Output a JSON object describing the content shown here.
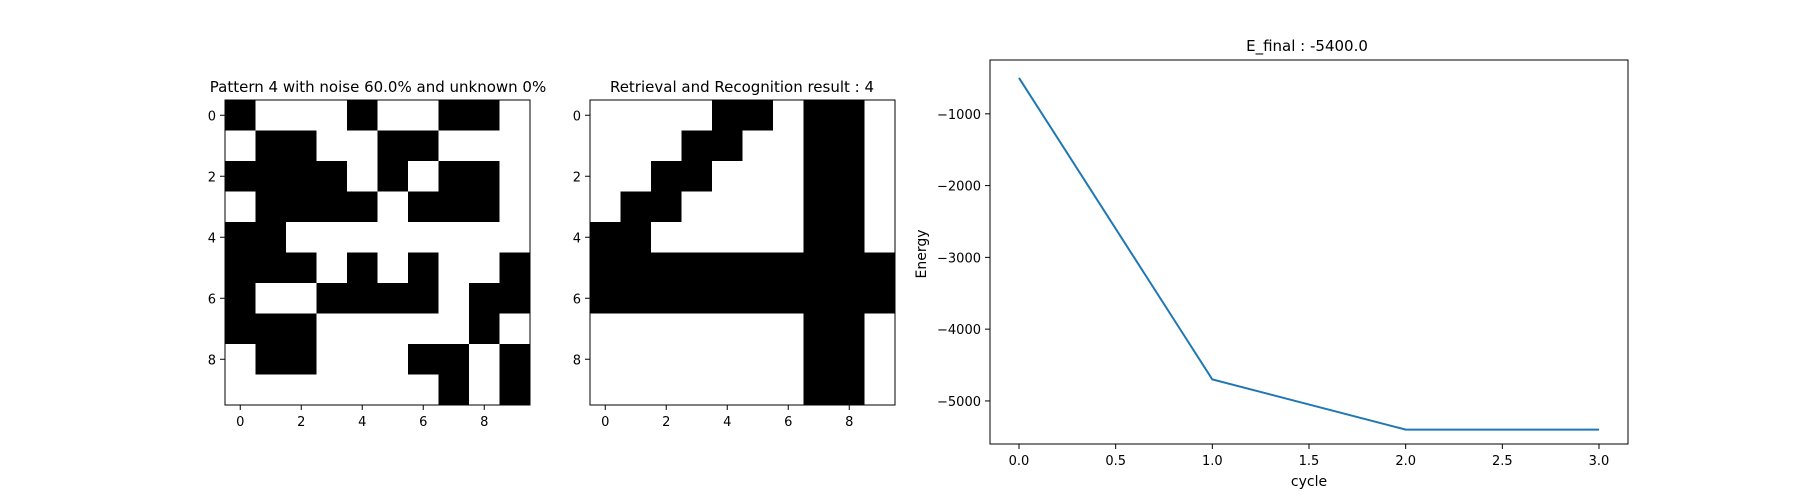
{
  "chart_data": [
    {
      "type": "heatmap",
      "title": "Pattern 4 with noise 60.0% and unknown 0%",
      "x_ticks": [
        "0",
        "2",
        "4",
        "6",
        "8"
      ],
      "y_ticks": [
        "0",
        "2",
        "4",
        "6",
        "8"
      ],
      "rows": 10,
      "cols": 10,
      "colormap": {
        "1": "#000000",
        "0": "#ffffff"
      },
      "grid": [
        [
          1,
          0,
          0,
          0,
          1,
          0,
          0,
          1,
          1,
          0
        ],
        [
          0,
          1,
          1,
          0,
          0,
          1,
          1,
          0,
          0,
          0
        ],
        [
          1,
          1,
          1,
          1,
          0,
          1,
          0,
          1,
          1,
          0
        ],
        [
          0,
          1,
          1,
          1,
          1,
          0,
          1,
          1,
          1,
          0
        ],
        [
          1,
          1,
          0,
          0,
          0,
          0,
          0,
          0,
          0,
          0
        ],
        [
          1,
          1,
          1,
          0,
          1,
          0,
          1,
          0,
          0,
          1
        ],
        [
          1,
          0,
          0,
          1,
          1,
          1,
          1,
          0,
          1,
          1
        ],
        [
          1,
          1,
          1,
          0,
          0,
          0,
          0,
          0,
          1,
          0
        ],
        [
          0,
          1,
          1,
          0,
          0,
          0,
          1,
          1,
          0,
          1
        ],
        [
          0,
          0,
          0,
          0,
          0,
          0,
          0,
          1,
          0,
          1
        ]
      ]
    },
    {
      "type": "heatmap",
      "title": "Retrieval and Recognition result : 4",
      "x_ticks": [
        "0",
        "2",
        "4",
        "6",
        "8"
      ],
      "y_ticks": [
        "0",
        "2",
        "4",
        "6",
        "8"
      ],
      "rows": 10,
      "cols": 10,
      "colormap": {
        "1": "#000000",
        "0": "#ffffff"
      },
      "grid": [
        [
          0,
          0,
          0,
          0,
          1,
          1,
          0,
          1,
          1,
          0
        ],
        [
          0,
          0,
          0,
          1,
          1,
          0,
          0,
          1,
          1,
          0
        ],
        [
          0,
          0,
          1,
          1,
          0,
          0,
          0,
          1,
          1,
          0
        ],
        [
          0,
          1,
          1,
          0,
          0,
          0,
          0,
          1,
          1,
          0
        ],
        [
          1,
          1,
          0,
          0,
          0,
          0,
          0,
          1,
          1,
          0
        ],
        [
          1,
          1,
          1,
          1,
          1,
          1,
          1,
          1,
          1,
          1
        ],
        [
          1,
          1,
          1,
          1,
          1,
          1,
          1,
          1,
          1,
          1
        ],
        [
          0,
          0,
          0,
          0,
          0,
          0,
          0,
          1,
          1,
          0
        ],
        [
          0,
          0,
          0,
          0,
          0,
          0,
          0,
          1,
          1,
          0
        ],
        [
          0,
          0,
          0,
          0,
          0,
          0,
          0,
          1,
          1,
          0
        ]
      ]
    },
    {
      "type": "line",
      "title": "E_final : -5400.0",
      "xlabel": "cycle",
      "ylabel": "Energy",
      "x": [
        0,
        1,
        2,
        3
      ],
      "series": [
        {
          "values": [
            -500,
            -4700,
            -5400,
            -5400
          ],
          "color": "#1f77b4"
        }
      ],
      "xlim": [
        -0.15,
        3.15
      ],
      "ylim": [
        -5600,
        -250
      ],
      "x_ticks": [
        0.0,
        0.5,
        1.0,
        1.5,
        2.0,
        2.5,
        3.0
      ],
      "x_tick_labels": [
        "0.0",
        "0.5",
        "1.0",
        "1.5",
        "2.0",
        "2.5",
        "3.0"
      ],
      "y_ticks": [
        -1000,
        -2000,
        -3000,
        -4000,
        -5000
      ],
      "y_tick_labels": [
        "−1000",
        "−2000",
        "−3000",
        "−4000",
        "−5000"
      ],
      "grid": false,
      "legend": false
    }
  ]
}
